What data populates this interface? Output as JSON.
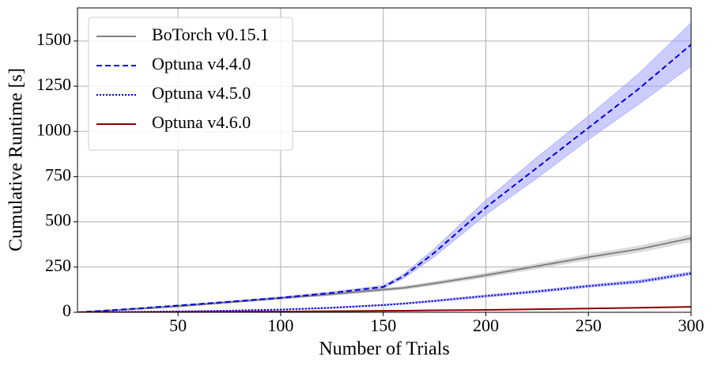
{
  "chart_data": {
    "type": "line",
    "xlabel": "Number of Trials",
    "ylabel": "Cumulative Runtime [s]",
    "x": [
      1,
      25,
      50,
      75,
      100,
      125,
      150,
      160,
      175,
      200,
      225,
      250,
      275,
      300
    ],
    "series": [
      {
        "name": "BoTorch v0.15.1",
        "color": "#808080",
        "linestyle": "solid",
        "band_color": "#c0c0c0",
        "values": [
          0,
          15,
          33,
          55,
          78,
          100,
          125,
          135,
          160,
          205,
          255,
          305,
          350,
          410
        ],
        "upper": [
          0,
          17,
          36,
          59,
          83,
          106,
          132,
          143,
          169,
          216,
          268,
          320,
          366,
          428
        ],
        "lower": [
          0,
          13,
          30,
          51,
          73,
          94,
          118,
          127,
          151,
          194,
          242,
          290,
          334,
          392
        ]
      },
      {
        "name": "Optuna v4.4.0",
        "color": "#0000dd",
        "linestyle": "dashed",
        "band_color": "#9999ff",
        "values": [
          0,
          17,
          37,
          58,
          80,
          107,
          140,
          200,
          330,
          580,
          800,
          1020,
          1240,
          1480
        ],
        "upper": [
          0,
          19,
          40,
          62,
          85,
          113,
          148,
          212,
          352,
          620,
          858,
          1085,
          1325,
          1600
        ],
        "lower": [
          0,
          15,
          34,
          54,
          75,
          101,
          133,
          188,
          308,
          540,
          742,
          955,
          1155,
          1360
        ]
      },
      {
        "name": "Optuna v4.5.0",
        "color": "#0000dd",
        "linestyle": "dotted",
        "band_color": "#9999ff",
        "values": [
          0,
          2,
          5,
          9,
          15,
          25,
          40,
          48,
          63,
          90,
          115,
          145,
          170,
          215
        ],
        "upper": [
          0,
          3,
          6,
          11,
          17,
          28,
          44,
          52,
          68,
          96,
          122,
          152,
          178,
          224
        ],
        "lower": [
          0,
          1,
          4,
          7,
          13,
          22,
          36,
          44,
          58,
          84,
          108,
          138,
          162,
          206
        ]
      },
      {
        "name": "Optuna v4.6.0",
        "color": "#8b0000",
        "linestyle": "solid",
        "values": [
          0,
          0.5,
          1.5,
          3,
          4,
          6,
          8,
          9,
          11,
          13,
          17,
          21,
          25,
          30
        ]
      }
    ],
    "xlim": [
      1,
      300
    ],
    "ylim": [
      0,
      1683
    ],
    "xticks": [
      50,
      100,
      150,
      200,
      250,
      300
    ],
    "yticks": [
      0,
      250,
      500,
      750,
      1000,
      1250,
      1500
    ],
    "grid": true,
    "legend": "upper-left"
  }
}
